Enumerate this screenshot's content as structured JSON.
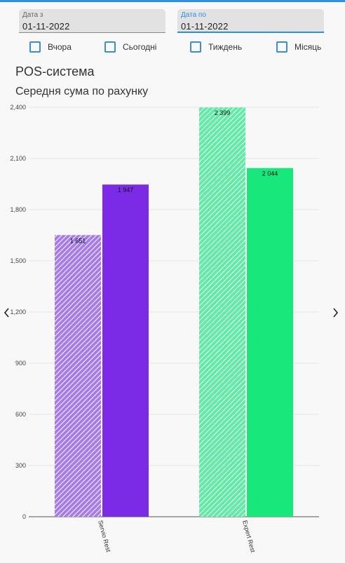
{
  "filters": {
    "date_from": {
      "label": "Дата з",
      "value": "01-11-2022"
    },
    "date_to": {
      "label": "Дата по",
      "value": "01-11-2022"
    },
    "periods": [
      {
        "label": "Вчора",
        "checked": false
      },
      {
        "label": "Сьогодні",
        "checked": false
      },
      {
        "label": "Тиждень",
        "checked": false
      },
      {
        "label": "Місяць",
        "checked": false
      }
    ]
  },
  "section_title": "POS-система",
  "icons": {
    "prev": "chevron-left-icon",
    "next": "chevron-right-icon"
  },
  "chart_data": {
    "type": "bar",
    "title": "Середня сума по рахунку",
    "categories": [
      "Servio Rest",
      "Expert Rest"
    ],
    "series": [
      {
        "values": [
          1651,
          2399
        ],
        "style": "hatched"
      },
      {
        "values": [
          1947,
          2044
        ],
        "style": "solid"
      }
    ],
    "data_labels": [
      [
        "1 651",
        "2 399"
      ],
      [
        "1 947",
        "2 044"
      ]
    ],
    "category_colors": [
      "#7b2ae6",
      "#18e87c"
    ],
    "ylim": [
      0,
      2400
    ],
    "yticks": [
      0,
      300,
      600,
      900,
      1200,
      1500,
      1800,
      2100,
      2400
    ],
    "ytick_labels": [
      "0",
      "300",
      "600",
      "900",
      "1,200",
      "1,500",
      "1,800",
      "2,100",
      "2,400"
    ],
    "grid": true,
    "xlabel": "",
    "ylabel": ""
  }
}
